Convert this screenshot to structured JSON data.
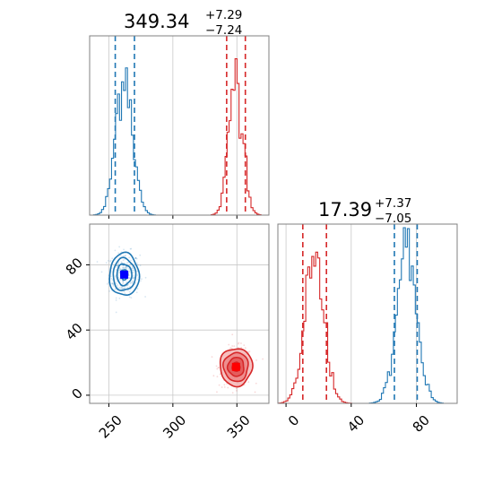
{
  "chart_data": [
    {
      "type": "histogram",
      "panel": "top-left marginal",
      "title_value": "349.34",
      "title_plus": "+7.29",
      "title_minus": "−7.24",
      "xlim": [
        235,
        375
      ],
      "gridlines_x": [
        250,
        300,
        350
      ],
      "series": [
        {
          "name": "",
          "color": "#1f77b4",
          "mean": 262,
          "sd": 6.5,
          "peak": 0.82,
          "quantiles": [
            255,
            270
          ]
        },
        {
          "name": "",
          "color": "#d62728",
          "mean": 349.34,
          "sd": 5.4,
          "peak": 0.8,
          "quantiles": [
            342,
            356.6
          ]
        }
      ]
    },
    {
      "type": "scatter",
      "panel": "bottom-left joint",
      "xlim": [
        235,
        375
      ],
      "ylim": [
        -5,
        105
      ],
      "xticks": [
        "250",
        "300",
        "350"
      ],
      "yticks": [
        "0",
        "40",
        "80"
      ],
      "xtick_values": [
        250,
        300,
        350
      ],
      "ytick_values": [
        0,
        40,
        80
      ],
      "series": [
        {
          "name": "",
          "color": "#1f77b4",
          "marker_color": "#0000ff",
          "center": [
            262,
            74
          ],
          "sd": [
            5.5,
            6.2
          ]
        },
        {
          "name": "",
          "color": "#d62728",
          "marker_color": "#ff0000",
          "center": [
            349.34,
            17.39
          ],
          "sd": [
            6.0,
            5.5
          ]
        }
      ]
    },
    {
      "type": "histogram",
      "panel": "bottom-right marginal",
      "title_value": "17.39",
      "title_plus": "+7.37",
      "title_minus": "−7.05",
      "xlim": [
        -5,
        105
      ],
      "xticks": [
        "0",
        "40",
        "80"
      ],
      "xtick_values": [
        0,
        40,
        80
      ],
      "gridlines_x": [
        0,
        40,
        80
      ],
      "series": [
        {
          "name": "",
          "color": "#d62728",
          "mean": 17.39,
          "sd": 6.0,
          "peak": 0.8,
          "quantiles": [
            10.3,
            24.8
          ]
        },
        {
          "name": "",
          "color": "#1f77b4",
          "mean": 74,
          "sd": 6.2,
          "peak": 0.82,
          "quantiles": [
            66.5,
            80.5
          ]
        }
      ]
    }
  ]
}
